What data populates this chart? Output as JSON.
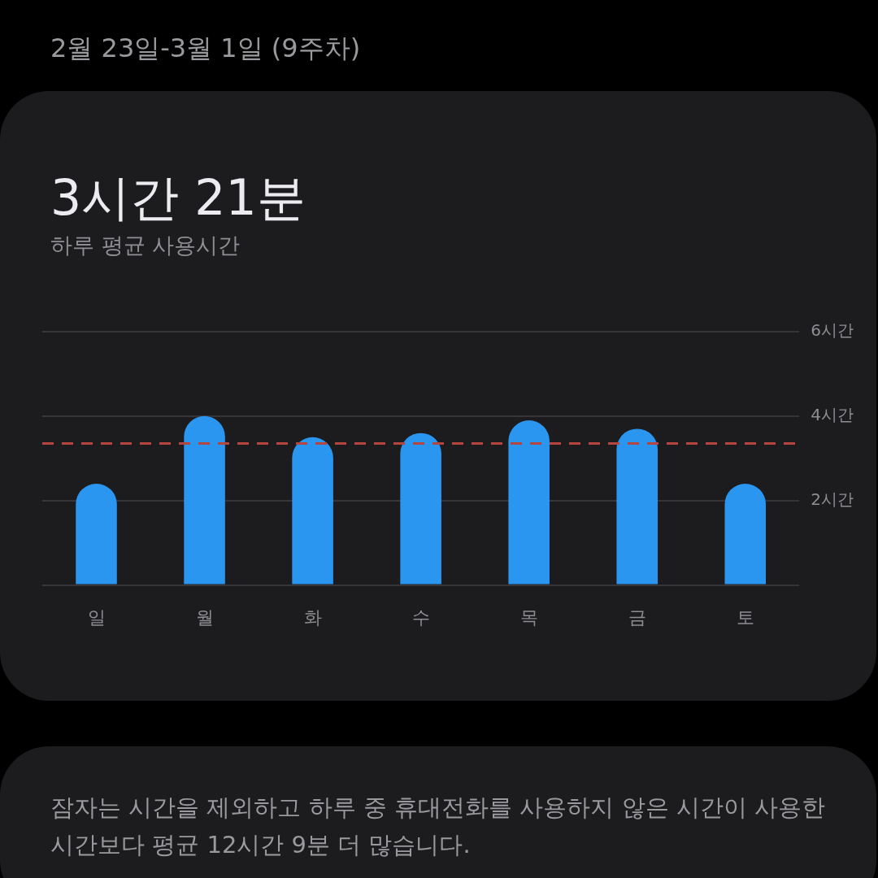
{
  "chart_data": {
    "type": "bar",
    "title": "3시간 21분",
    "subtitle": "하루 평균 사용시간",
    "annotations": [
      "2월 23일-3월 1일 (9주차)",
      "잠자는 시간을 제외하고 하루 중 휴대전화를 사용하지 않은 시간이 사용한 시간보다 평균 12시간 9분 더 많습니다."
    ],
    "categories": [
      "일",
      "월",
      "화",
      "수",
      "목",
      "금",
      "토"
    ],
    "values": [
      2.4,
      4.0,
      3.5,
      3.6,
      3.9,
      3.7,
      2.4
    ],
    "color": "#2b96f0",
    "ylim": [
      0,
      6
    ],
    "yticks": [
      {
        "value": 0,
        "label": null
      },
      {
        "value": 2,
        "label": "2시간"
      },
      {
        "value": 4,
        "label": "4시간"
      },
      {
        "value": 6,
        "label": "6시간"
      }
    ],
    "grid": "y",
    "legend": false,
    "ref_lines": [
      {
        "axis": "y",
        "value": 3.35,
        "color": "#b5463f",
        "line_style": "dashed"
      }
    ]
  }
}
